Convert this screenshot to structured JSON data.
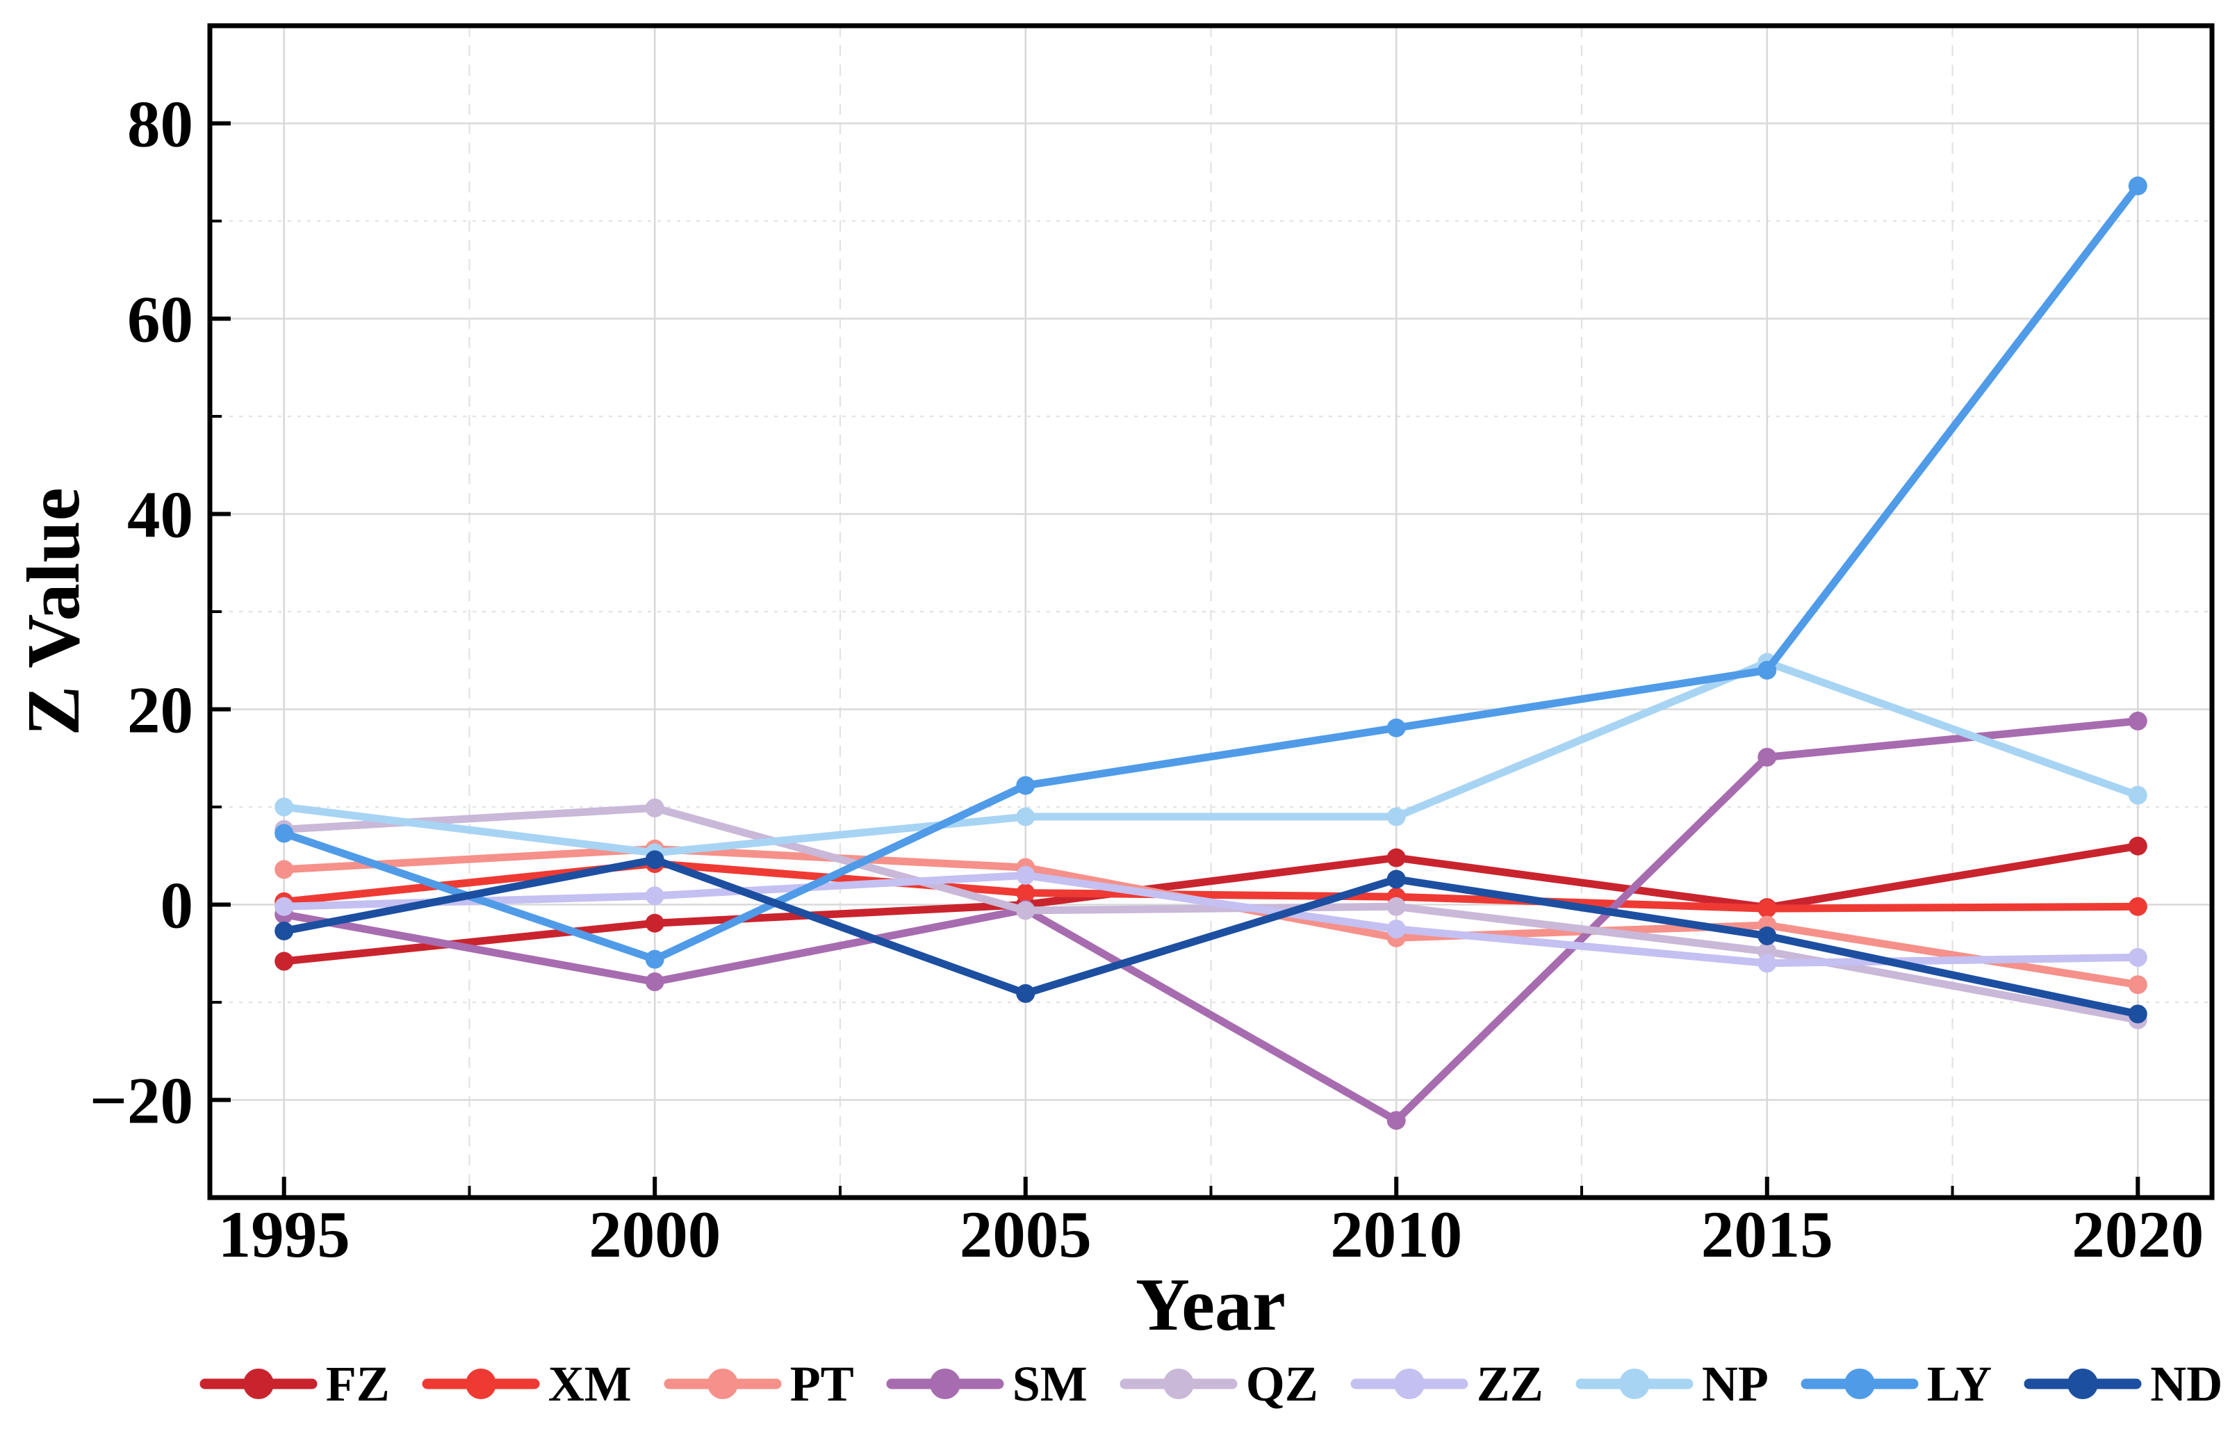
{
  "figure": {
    "background": "#ffffff",
    "frame_color": "#000000",
    "tick_color": "#000000",
    "grid_major_color": "#d9d9d9",
    "grid_minor_color": "#e2e2e2"
  },
  "chart_data": {
    "type": "line",
    "title": "",
    "xlabel": "Year",
    "ylabel": "Z Value",
    "categories": [
      1995,
      2000,
      2005,
      2010,
      2015,
      2020
    ],
    "xlim": [
      1994,
      2021
    ],
    "ylim": [
      -30,
      90
    ],
    "yticks_major": [
      -20,
      0,
      20,
      40,
      60,
      80
    ],
    "yticks_minor": [
      -10,
      10,
      30,
      50,
      70
    ],
    "xticks_minor": [
      1997.5,
      2002.5,
      2007.5,
      2012.5,
      2017.5
    ],
    "grid": "major solid, minor dashed",
    "legend_position": "bottom center",
    "marker": "circle",
    "series": [
      {
        "name": "FZ",
        "color": "#c9242e",
        "values": [
          -5.8,
          -1.9,
          0.0,
          4.8,
          -0.3,
          6.0
        ]
      },
      {
        "name": "XM",
        "color": "#ee3a33",
        "values": [
          0.3,
          4.2,
          1.2,
          0.8,
          -0.4,
          -0.2
        ]
      },
      {
        "name": "PT",
        "color": "#f5918a",
        "values": [
          3.6,
          5.7,
          3.8,
          -3.4,
          -2.1,
          -8.2
        ]
      },
      {
        "name": "SM",
        "color": "#a76caf",
        "values": [
          -1.0,
          -7.9,
          -0.5,
          -22.1,
          15.1,
          18.8
        ]
      },
      {
        "name": "QZ",
        "color": "#c9b8d8",
        "values": [
          7.7,
          9.9,
          -0.6,
          -0.2,
          -4.8,
          -11.8
        ]
      },
      {
        "name": "ZZ",
        "color": "#c4c0f2",
        "values": [
          -0.2,
          0.9,
          3.0,
          -2.5,
          -6.0,
          -5.4
        ]
      },
      {
        "name": "NP",
        "color": "#a8d4f4",
        "values": [
          10.0,
          5.3,
          9.0,
          9.0,
          24.8,
          11.2
        ]
      },
      {
        "name": "LY",
        "color": "#4f9be8",
        "values": [
          7.3,
          -5.6,
          12.2,
          18.1,
          24.0,
          73.6
        ]
      },
      {
        "name": "ND",
        "color": "#1d4fa1",
        "values": [
          -2.7,
          4.6,
          -9.1,
          2.6,
          -3.2,
          -11.2
        ]
      }
    ]
  }
}
